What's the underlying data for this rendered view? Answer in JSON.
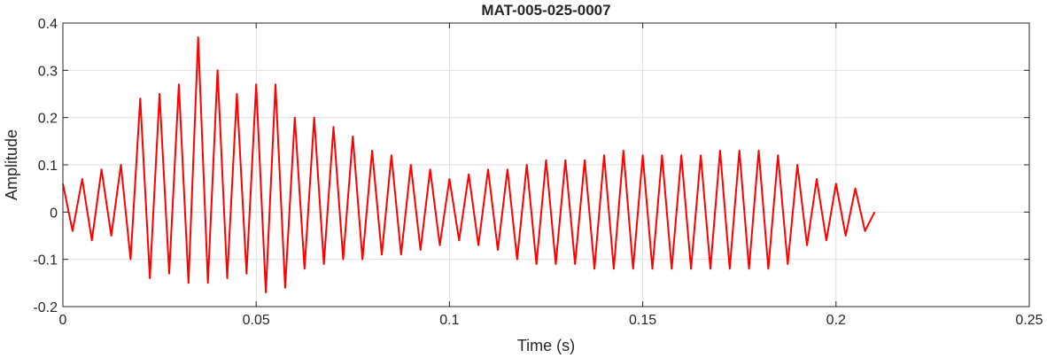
{
  "chart_data": {
    "type": "line",
    "title": "MAT-005-025-0007",
    "xlabel": "Time (s)",
    "ylabel": "Amplitude",
    "xlim": [
      0,
      0.25
    ],
    "ylim": [
      -0.2,
      0.4
    ],
    "xticks": [
      0,
      0.05,
      0.1,
      0.15,
      0.2,
      0.25
    ],
    "xtick_labels": [
      "0",
      "0.05",
      "0.1",
      "0.15",
      "0.2",
      "0.25"
    ],
    "yticks": [
      -0.2,
      -0.1,
      0,
      0.1,
      0.2,
      0.3,
      0.4
    ],
    "ytick_labels": [
      "-0.2",
      "-0.1",
      "0",
      "0.1",
      "0.2",
      "0.3",
      "0.4"
    ],
    "grid": true,
    "line_color": "#ff0000",
    "series": [
      {
        "x": [
          0.0,
          0.0025,
          0.005,
          0.0075,
          0.01,
          0.0125,
          0.015,
          0.0175,
          0.02,
          0.0225,
          0.025,
          0.0275,
          0.03,
          0.0325,
          0.035,
          0.0375,
          0.04,
          0.0425,
          0.045,
          0.0475,
          0.05,
          0.0525,
          0.055,
          0.0575,
          0.06,
          0.0625,
          0.065,
          0.0675,
          0.07,
          0.0725,
          0.075,
          0.0775,
          0.08,
          0.0825,
          0.085,
          0.0875,
          0.09,
          0.0925,
          0.095,
          0.0975,
          0.1,
          0.1025,
          0.105,
          0.1075,
          0.11,
          0.1125,
          0.115,
          0.1175,
          0.12,
          0.1225,
          0.125,
          0.1275,
          0.13,
          0.1325,
          0.135,
          0.1375,
          0.14,
          0.1425,
          0.145,
          0.1475,
          0.15,
          0.1525,
          0.155,
          0.1575,
          0.16,
          0.1625,
          0.165,
          0.1675,
          0.17,
          0.1725,
          0.175,
          0.1775,
          0.18,
          0.1825,
          0.185,
          0.1875,
          0.19,
          0.1925,
          0.195,
          0.1975,
          0.2,
          0.2025,
          0.205,
          0.2075,
          0.21
        ],
        "y": [
          0.06,
          -0.04,
          0.07,
          -0.06,
          0.09,
          -0.05,
          0.1,
          -0.1,
          0.24,
          -0.14,
          0.25,
          -0.13,
          0.27,
          -0.15,
          0.37,
          -0.15,
          0.3,
          -0.14,
          0.25,
          -0.13,
          0.27,
          -0.17,
          0.27,
          -0.16,
          0.2,
          -0.12,
          0.2,
          -0.11,
          0.18,
          -0.1,
          0.16,
          -0.1,
          0.13,
          -0.09,
          0.12,
          -0.09,
          0.1,
          -0.08,
          0.09,
          -0.07,
          0.07,
          -0.06,
          0.08,
          -0.07,
          0.09,
          -0.08,
          0.09,
          -0.1,
          0.1,
          -0.11,
          0.11,
          -0.11,
          0.11,
          -0.11,
          0.11,
          -0.12,
          0.12,
          -0.12,
          0.13,
          -0.12,
          0.12,
          -0.12,
          0.12,
          -0.12,
          0.12,
          -0.12,
          0.12,
          -0.12,
          0.13,
          -0.12,
          0.13,
          -0.12,
          0.13,
          -0.12,
          0.12,
          -0.11,
          0.1,
          -0.07,
          0.07,
          -0.06,
          0.06,
          -0.05,
          0.05,
          -0.04,
          0.0
        ]
      }
    ]
  }
}
